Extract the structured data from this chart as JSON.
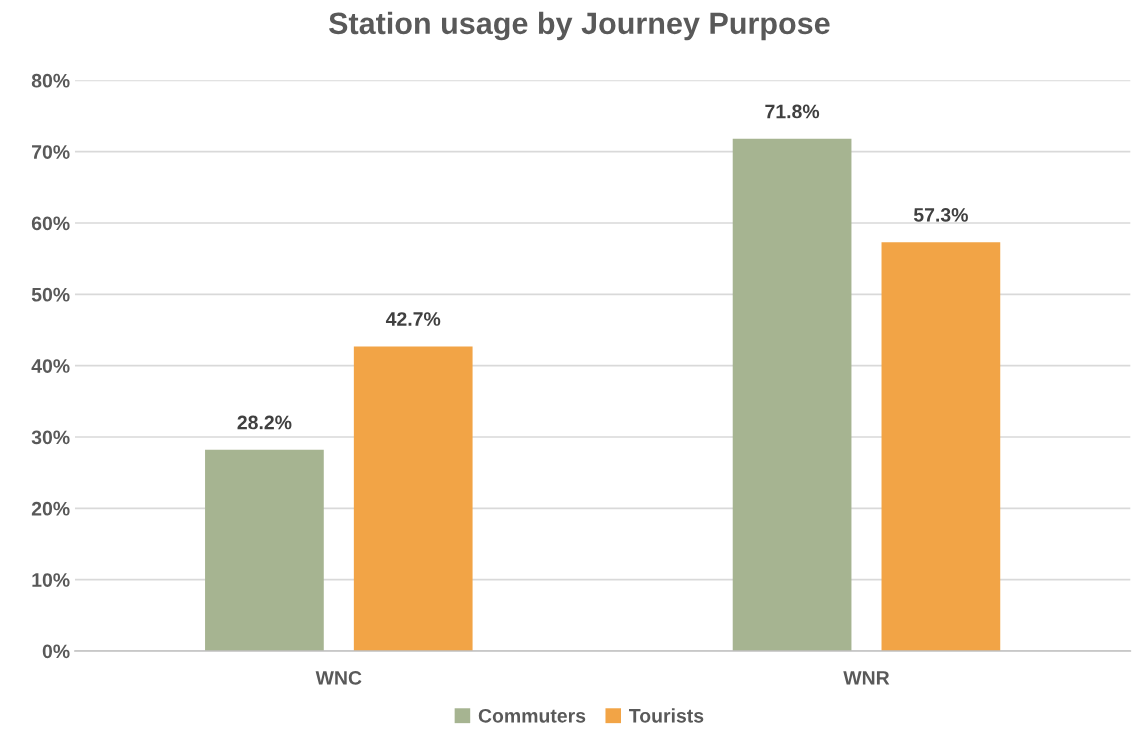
{
  "chart_data": {
    "type": "bar",
    "title": "Station usage by Journey Purpose",
    "categories": [
      "WNC",
      "WNR"
    ],
    "series": [
      {
        "name": "Commuters",
        "color": "#a6b491",
        "values": [
          28.2,
          71.8
        ],
        "value_labels": [
          "28.2%",
          "71.8%"
        ]
      },
      {
        "name": "Tourists",
        "color": "#f2a446",
        "values": [
          42.7,
          57.3
        ],
        "value_labels": [
          "42.7%",
          "57.3%"
        ]
      }
    ],
    "ylim": [
      0,
      80
    ],
    "yticks": [
      {
        "value": 0,
        "label": "0%"
      },
      {
        "value": 10,
        "label": "10%"
      },
      {
        "value": 20,
        "label": "20%"
      },
      {
        "value": 30,
        "label": "30%"
      },
      {
        "value": 40,
        "label": "40%"
      },
      {
        "value": 50,
        "label": "50%"
      },
      {
        "value": 60,
        "label": "60%"
      },
      {
        "value": 70,
        "label": "70%"
      },
      {
        "value": 80,
        "label": "80%"
      }
    ],
    "grid": "y",
    "legend": "bottom"
  }
}
